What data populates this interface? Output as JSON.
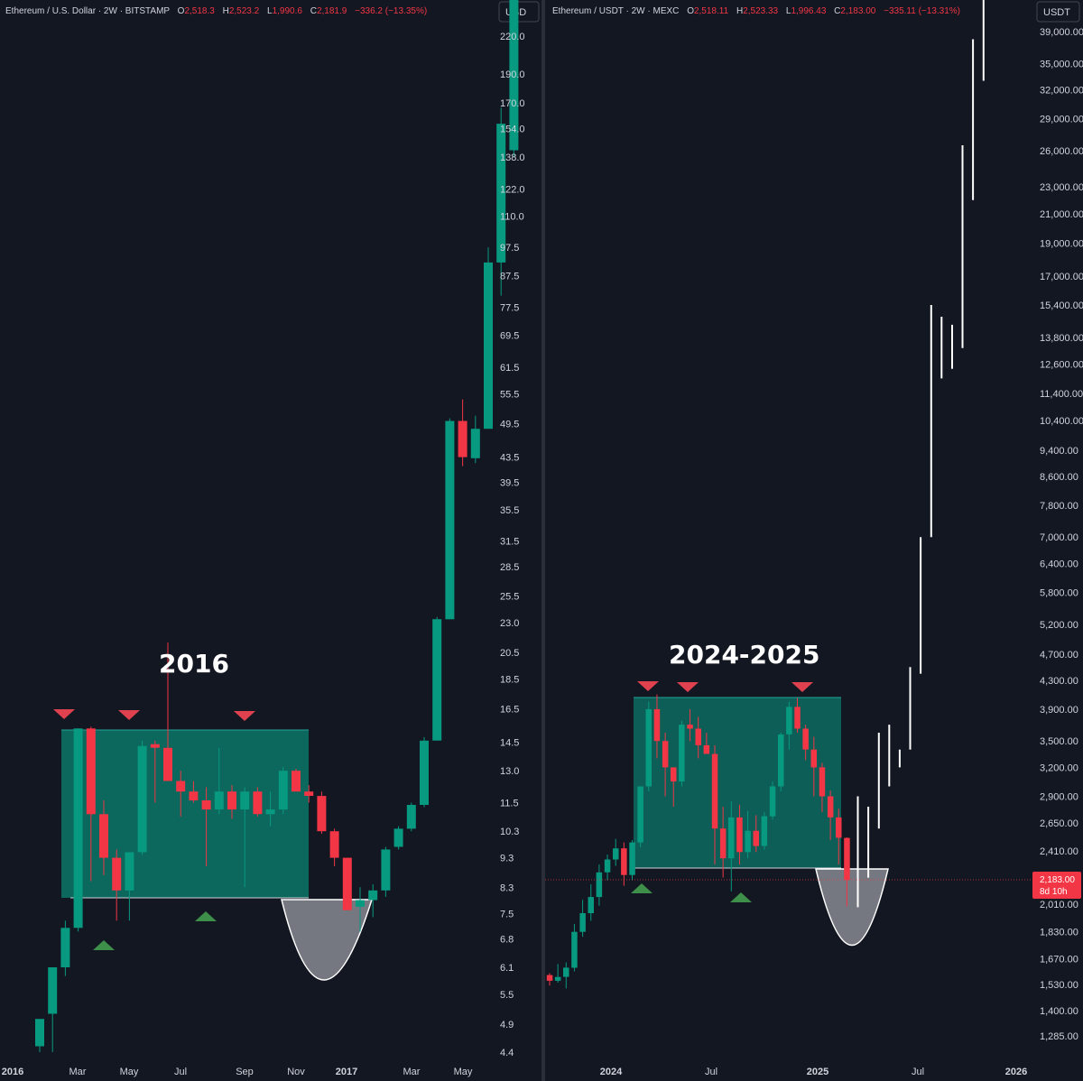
{
  "panels": [
    {
      "header": {
        "symbol": "Ethereum / U.S. Dollar · 2W · BITSTAMP",
        "o_label": "O",
        "o_value": "2,518.3",
        "h_label": "H",
        "h_value": "2,523.2",
        "l_label": "L",
        "l_value": "1,990.6",
        "c_label": "C",
        "c_value": "2,181.9",
        "change": "−336.2 (−13.35%)"
      },
      "currency": "USD",
      "annotation": "2016",
      "x_ticks": [
        "2016",
        "Mar",
        "May",
        "Jul",
        "Sep",
        "Nov",
        "2017",
        "Mar",
        "May"
      ]
    },
    {
      "header": {
        "symbol": "Ethereum / USDT · 2W · MEXC",
        "o_label": "O",
        "o_value": "2,518.11",
        "h_label": "H",
        "h_value": "2,523.33",
        "l_label": "L",
        "l_value": "1,996.43",
        "c_label": "C",
        "c_value": "2,183.00",
        "change": "−335.11 (−13.31%)"
      },
      "currency": "USDT",
      "annotation": "2024-2025",
      "x_ticks": [
        "2024",
        "Jul",
        "2025",
        "Jul",
        "2026"
      ],
      "current_price": "2,183.00",
      "countdown": "8d 10h"
    }
  ],
  "chart_data": [
    {
      "type": "candlestick",
      "title": "Ethereum / U.S. Dollar · 2W · BITSTAMP",
      "y_scale": "log",
      "y_ticks": [
        "220.0",
        "190.0",
        "170.0",
        "154.0",
        "138.0",
        "122.0",
        "110.0",
        "97.5",
        "87.5",
        "77.5",
        "69.5",
        "61.5",
        "55.5",
        "49.5",
        "43.5",
        "39.5",
        "35.5",
        "31.5",
        "28.5",
        "25.5",
        "23.0",
        "20.5",
        "18.5",
        "16.5",
        "14.5",
        "13.0",
        "11.5",
        "10.3",
        "9.3",
        "8.3",
        "7.5",
        "6.8",
        "6.1",
        "5.5",
        "4.9",
        "4.4"
      ],
      "x_ticks": [
        "2016",
        "Mar",
        "May",
        "Jul",
        "Sep",
        "Nov",
        "2017",
        "Mar",
        "May"
      ],
      "candles": [
        {
          "o": 4.5,
          "h": 5.0,
          "l": 4.4,
          "c": 5.0
        },
        {
          "o": 5.1,
          "h": 6.0,
          "l": 4.4,
          "c": 6.1
        },
        {
          "o": 6.1,
          "h": 7.3,
          "l": 5.9,
          "c": 7.1
        },
        {
          "o": 7.1,
          "h": 15.3,
          "l": 7.0,
          "c": 15.3
        },
        {
          "o": 15.3,
          "h": 15.4,
          "l": 8.5,
          "c": 11.0
        },
        {
          "o": 11.0,
          "h": 11.6,
          "l": 8.7,
          "c": 9.3
        },
        {
          "o": 9.3,
          "h": 9.6,
          "l": 7.3,
          "c": 8.2
        },
        {
          "o": 8.2,
          "h": 9.3,
          "l": 7.3,
          "c": 9.5
        },
        {
          "o": 9.5,
          "h": 14.6,
          "l": 9.4,
          "c": 14.3
        },
        {
          "o": 14.4,
          "h": 14.6,
          "l": 11.5,
          "c": 14.2
        },
        {
          "o": 14.2,
          "h": 21.3,
          "l": 12.6,
          "c": 12.5
        },
        {
          "o": 12.5,
          "h": 13.0,
          "l": 10.9,
          "c": 12.0
        },
        {
          "o": 12.0,
          "h": 12.5,
          "l": 11.5,
          "c": 11.6
        },
        {
          "o": 11.6,
          "h": 12.2,
          "l": 9.0,
          "c": 11.2
        },
        {
          "o": 11.2,
          "h": 14.2,
          "l": 11.0,
          "c": 12.0
        },
        {
          "o": 12.0,
          "h": 12.3,
          "l": 10.8,
          "c": 11.2
        },
        {
          "o": 11.2,
          "h": 12.2,
          "l": 8.3,
          "c": 12.0
        },
        {
          "o": 12.0,
          "h": 12.2,
          "l": 10.9,
          "c": 11.0
        },
        {
          "o": 11.0,
          "h": 12.0,
          "l": 10.5,
          "c": 11.2
        },
        {
          "o": 11.2,
          "h": 13.2,
          "l": 11.0,
          "c": 13.0
        },
        {
          "o": 13.0,
          "h": 13.1,
          "l": 12.0,
          "c": 12.0
        },
        {
          "o": 12.0,
          "h": 12.3,
          "l": 11.5,
          "c": 11.8
        },
        {
          "o": 11.8,
          "h": 12.0,
          "l": 10.2,
          "c": 10.3
        },
        {
          "o": 10.3,
          "h": 10.4,
          "l": 9.0,
          "c": 9.3
        },
        {
          "o": 9.3,
          "h": 9.3,
          "l": 7.7,
          "c": 7.6
        },
        {
          "o": 7.7,
          "h": 8.3,
          "l": 7.0,
          "c": 7.9
        },
        {
          "o": 7.9,
          "h": 8.4,
          "l": 7.4,
          "c": 8.2
        },
        {
          "o": 8.2,
          "h": 9.7,
          "l": 8.0,
          "c": 9.6
        },
        {
          "o": 9.7,
          "h": 10.5,
          "l": 9.6,
          "c": 10.4
        },
        {
          "o": 10.4,
          "h": 11.5,
          "l": 10.3,
          "c": 11.4
        },
        {
          "o": 11.4,
          "h": 14.8,
          "l": 11.3,
          "c": 14.6
        },
        {
          "o": 14.6,
          "h": 23.5,
          "l": 14.6,
          "c": 23.3
        },
        {
          "o": 23.3,
          "h": 50.5,
          "l": 23.3,
          "c": 50.0
        },
        {
          "o": 50.0,
          "h": 54.3,
          "l": 42.0,
          "c": 43.5
        },
        {
          "o": 43.3,
          "h": 51.0,
          "l": 42.5,
          "c": 48.5
        },
        {
          "o": 48.5,
          "h": 97.5,
          "l": 48.5,
          "c": 92.0
        },
        {
          "o": 92.0,
          "h": 167.0,
          "l": 81.0,
          "c": 157.0
        },
        {
          "o": 157.0,
          "h": 280.0,
          "l": 138.0,
          "c": 280.0
        }
      ]
    },
    {
      "type": "candlestick",
      "title": "Ethereum / USDT · 2W · MEXC",
      "y_scale": "log",
      "y_ticks": [
        "39,000.00",
        "35,000.00",
        "32,000.00",
        "29,000.00",
        "26,000.00",
        "23,000.00",
        "21,000.00",
        "19,000.00",
        "17,000.00",
        "15,400.00",
        "13,800.00",
        "12,600.00",
        "11,400.00",
        "10,400.00",
        "9,400.00",
        "8,600.00",
        "7,800.00",
        "7,000.00",
        "6,400.00",
        "5,800.00",
        "5,200.00",
        "4,700.00",
        "4,300.00",
        "3,900.00",
        "3,500.00",
        "3,200.00",
        "2,900.00",
        "2,650.00",
        "2,410.00",
        "2,183.00",
        "2,010.00",
        "1,830.00",
        "1,670.00",
        "1,530.00",
        "1,400.00",
        "1,285.00"
      ],
      "x_ticks": [
        "2024",
        "Jul",
        "2025",
        "Jul",
        "2026"
      ],
      "candles": [
        {
          "o": 1580,
          "h": 1590,
          "l": 1525,
          "c": 1550
        },
        {
          "o": 1550,
          "h": 1640,
          "l": 1540,
          "c": 1570
        },
        {
          "o": 1570,
          "h": 1650,
          "l": 1510,
          "c": 1620
        },
        {
          "o": 1620,
          "h": 1880,
          "l": 1600,
          "c": 1830
        },
        {
          "o": 1830,
          "h": 2040,
          "l": 1800,
          "c": 1950
        },
        {
          "o": 1950,
          "h": 2150,
          "l": 1900,
          "c": 2060
        },
        {
          "o": 2060,
          "h": 2300,
          "l": 2000,
          "c": 2240
        },
        {
          "o": 2240,
          "h": 2380,
          "l": 2180,
          "c": 2340
        },
        {
          "o": 2340,
          "h": 2510,
          "l": 2290,
          "c": 2430
        },
        {
          "o": 2430,
          "h": 2480,
          "l": 2140,
          "c": 2220
        },
        {
          "o": 2220,
          "h": 2500,
          "l": 2180,
          "c": 2480
        },
        {
          "o": 2480,
          "h": 3000,
          "l": 2440,
          "c": 3000
        },
        {
          "o": 3000,
          "h": 4000,
          "l": 2950,
          "c": 3900
        },
        {
          "o": 3900,
          "h": 4100,
          "l": 3300,
          "c": 3500
        },
        {
          "o": 3500,
          "h": 3600,
          "l": 2900,
          "c": 3200
        },
        {
          "o": 3200,
          "h": 3200,
          "l": 2800,
          "c": 3050
        },
        {
          "o": 3050,
          "h": 3750,
          "l": 3000,
          "c": 3700
        },
        {
          "o": 3700,
          "h": 3900,
          "l": 3500,
          "c": 3650
        },
        {
          "o": 3650,
          "h": 3800,
          "l": 3300,
          "c": 3450
        },
        {
          "o": 3450,
          "h": 3600,
          "l": 3350,
          "c": 3350
        },
        {
          "o": 3350,
          "h": 3450,
          "l": 2300,
          "c": 2600
        },
        {
          "o": 2600,
          "h": 2800,
          "l": 2200,
          "c": 2350
        },
        {
          "o": 2350,
          "h": 2850,
          "l": 2100,
          "c": 2700
        },
        {
          "o": 2700,
          "h": 2820,
          "l": 2300,
          "c": 2400
        },
        {
          "o": 2400,
          "h": 2760,
          "l": 2350,
          "c": 2580
        },
        {
          "o": 2580,
          "h": 2720,
          "l": 2400,
          "c": 2450
        },
        {
          "o": 2450,
          "h": 2750,
          "l": 2420,
          "c": 2710
        },
        {
          "o": 2710,
          "h": 3050,
          "l": 2680,
          "c": 3000
        },
        {
          "o": 3000,
          "h": 3600,
          "l": 2950,
          "c": 3580
        },
        {
          "o": 3580,
          "h": 4000,
          "l": 3400,
          "c": 3930
        },
        {
          "o": 3930,
          "h": 4050,
          "l": 3600,
          "c": 3650
        },
        {
          "o": 3650,
          "h": 3700,
          "l": 3280,
          "c": 3400
        },
        {
          "o": 3400,
          "h": 3550,
          "l": 2900,
          "c": 3200
        },
        {
          "o": 3200,
          "h": 3250,
          "l": 2750,
          "c": 2900
        },
        {
          "o": 2900,
          "h": 2960,
          "l": 2500,
          "c": 2700
        },
        {
          "o": 2700,
          "h": 2780,
          "l": 2300,
          "c": 2520
        },
        {
          "o": 2518,
          "h": 2523,
          "l": 1996,
          "c": 2183
        }
      ],
      "projection_bars": [
        {
          "h": 2900,
          "l": 1990
        },
        {
          "h": 2800,
          "l": 2200
        },
        {
          "h": 3600,
          "l": 2600
        },
        {
          "h": 3700,
          "l": 3000
        },
        {
          "h": 3400,
          "l": 3200
        },
        {
          "h": 4500,
          "l": 3400
        },
        {
          "h": 7000,
          "l": 4400
        },
        {
          "h": 15400,
          "l": 7000
        },
        {
          "h": 14800,
          "l": 12000
        },
        {
          "h": 14400,
          "l": 12400
        },
        {
          "h": 26500,
          "l": 13300
        },
        {
          "h": 38000,
          "l": 22000
        },
        {
          "h": 52000,
          "l": 33000
        }
      ]
    }
  ]
}
